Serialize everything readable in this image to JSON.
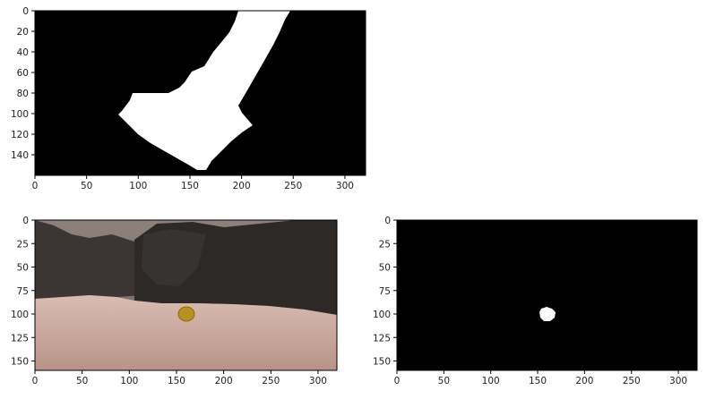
{
  "plots": [
    {
      "id": "threshold-mask",
      "x_range": [
        0,
        320
      ],
      "y_range": [
        0,
        160
      ],
      "x_ticks": [
        "0",
        "50",
        "100",
        "150",
        "200",
        "250",
        "300"
      ],
      "y_ticks": [
        "0",
        "20",
        "40",
        "60",
        "80",
        "100",
        "120",
        "140"
      ],
      "background": "#000000",
      "foreground": "#ffffff"
    },
    {
      "id": "camera-image",
      "x_range": [
        0,
        320
      ],
      "y_range": [
        0,
        160
      ],
      "x_ticks": [
        "0",
        "50",
        "100",
        "150",
        "200",
        "250",
        "300"
      ],
      "y_ticks": [
        "0",
        "25",
        "50",
        "75",
        "100",
        "125",
        "150"
      ],
      "colors": {
        "sky": "#8a7e7a",
        "rock": "#2e2b29",
        "ground": "#c9a89c",
        "sample": "#b8921e"
      }
    },
    {
      "id": "rock-sample-mask",
      "x_range": [
        0,
        320
      ],
      "y_range": [
        0,
        160
      ],
      "x_ticks": [
        "0",
        "50",
        "100",
        "150",
        "200",
        "250",
        "300"
      ],
      "y_ticks": [
        "0",
        "25",
        "50",
        "75",
        "100",
        "125",
        "150"
      ],
      "background": "#000000",
      "foreground": "#ffffff"
    }
  ]
}
